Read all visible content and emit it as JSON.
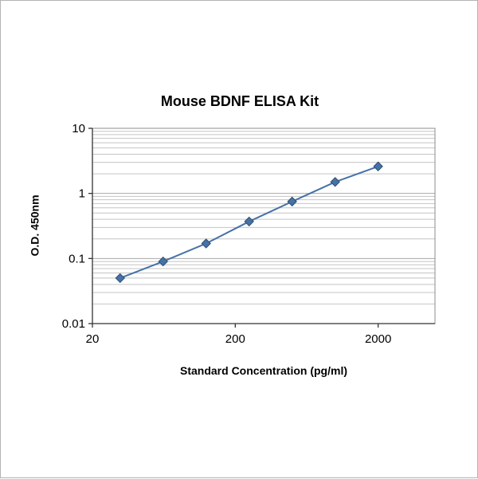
{
  "window": {
    "background": "#ffffff",
    "border_color": "#b3b3b3"
  },
  "chart_data": {
    "type": "line",
    "title": "Mouse BDNF ELISA Kit",
    "xlabel": "Standard Concentration (pg/ml)",
    "ylabel": "O.D. 450nm",
    "x": [
      31.25,
      62.5,
      125,
      250,
      500,
      1000,
      2000
    ],
    "y": [
      0.05,
      0.09,
      0.17,
      0.37,
      0.75,
      1.5,
      2.6
    ],
    "xscale": "log",
    "yscale": "log",
    "xlim": [
      20,
      5000
    ],
    "ylim": [
      0.01,
      10
    ],
    "xticks": [
      20,
      200,
      2000
    ],
    "yticks": [
      10,
      1,
      0.1,
      0.01
    ],
    "grid": "horizontal-log-major-and-minor",
    "legend": "none",
    "series_color": "#4572a7",
    "marker": "diamond",
    "marker_color": "#4572a7",
    "marker_stroke": "#2e4d70",
    "gridline_color": "#c4c4c4",
    "major_gridline_color": "#a8a8a8",
    "plot_border_color": "#8c8c8c",
    "axis_line_color": "#333333",
    "tick_label_color": "#000000"
  }
}
